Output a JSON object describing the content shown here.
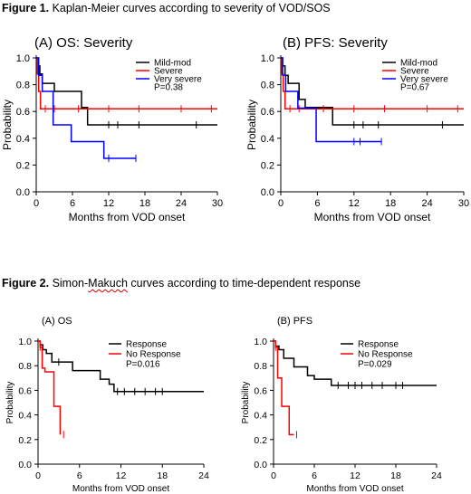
{
  "figures": [
    {
      "label": "Figure 1.",
      "pre": " Kaplan-Meier curves according to severity of VOD/SOS",
      "err": "",
      "post": ""
    },
    {
      "label": "Figure 2.",
      "pre": " Simon-",
      "err": "Makuch",
      "post": " curves according to time-dependent response"
    }
  ],
  "chart_data": [
    {
      "type": "line",
      "title": "(A) OS: Severity",
      "xlabel": "Months from VOD onset",
      "ylabel": "Probability",
      "xlim": [
        0,
        30
      ],
      "ylim": [
        0,
        1.0
      ],
      "xticks": [
        "0",
        "6",
        "12",
        "18",
        "24",
        "30"
      ],
      "yticks": [
        "0.0",
        "0.2",
        "0.4",
        "0.6",
        "0.8",
        "1.0"
      ],
      "legend": [
        "Mild-mod",
        "Severe",
        "Very severe",
        "P=0.38"
      ],
      "legend_position": "top-right",
      "grid": false,
      "series": [
        {
          "name": "Mild-mod",
          "color": "#000000",
          "x": [
            0,
            0.3,
            0.6,
            1,
            3,
            7.5,
            8.5,
            30
          ],
          "y": [
            1.0,
            0.94,
            0.88,
            0.81,
            0.75,
            0.63,
            0.5,
            0.5
          ],
          "censored_x": [
            12,
            13.5,
            17,
            26.5
          ]
        },
        {
          "name": "Severe",
          "color": "#ff0000",
          "x": [
            0,
            0.2,
            0.4,
            0.7,
            30
          ],
          "y": [
            1.0,
            0.88,
            0.75,
            0.62,
            0.62
          ],
          "censored_x": [
            1.5,
            3,
            7,
            12,
            17,
            24,
            29
          ]
        },
        {
          "name": "Very severe",
          "color": "#0000ff",
          "x": [
            0,
            0.4,
            1.0,
            2.8,
            5.8,
            11.2,
            16.5
          ],
          "y": [
            1.0,
            0.87,
            0.75,
            0.5,
            0.375,
            0.25,
            0.25
          ],
          "censored_x": [
            12,
            16.5
          ]
        }
      ]
    },
    {
      "type": "line",
      "title": "(B) PFS: Severity",
      "xlabel": "Months from VOD onset",
      "ylabel": "Probability",
      "xlim": [
        0,
        30
      ],
      "ylim": [
        0,
        1.0
      ],
      "xticks": [
        "0",
        "6",
        "12",
        "18",
        "24",
        "30"
      ],
      "yticks": [
        "0.0",
        "0.2",
        "0.4",
        "0.6",
        "0.8",
        "1.0"
      ],
      "legend": [
        "Mild-mod",
        "Severe",
        "Very severe",
        "P=0.67"
      ],
      "legend_position": "top-right",
      "grid": false,
      "series": [
        {
          "name": "Mild-mod",
          "color": "#000000",
          "x": [
            0,
            0.3,
            0.7,
            1.2,
            3,
            4,
            8.5,
            30
          ],
          "y": [
            1.0,
            0.94,
            0.87,
            0.81,
            0.69,
            0.63,
            0.5,
            0.5
          ],
          "censored_x": [
            12,
            13.5,
            16,
            26.5
          ]
        },
        {
          "name": "Severe",
          "color": "#ff0000",
          "x": [
            0,
            0.2,
            0.4,
            0.7,
            30
          ],
          "y": [
            1.0,
            0.88,
            0.75,
            0.62,
            0.62
          ],
          "censored_x": [
            1.5,
            3,
            7,
            12,
            17,
            24,
            29
          ]
        },
        {
          "name": "Very severe",
          "color": "#0000ff",
          "x": [
            0,
            0.3,
            0.8,
            2.8,
            5.8,
            16.5
          ],
          "y": [
            1.0,
            0.87,
            0.75,
            0.625,
            0.375,
            0.375
          ],
          "censored_x": [
            12,
            13,
            16.5
          ]
        }
      ]
    },
    {
      "type": "line",
      "title": "(A) OS",
      "xlabel": "Months from VOD onset",
      "ylabel": "Probability",
      "xlim": [
        0,
        24
      ],
      "ylim": [
        0,
        1.0
      ],
      "xticks": [
        "0",
        "6",
        "12",
        "18",
        "24"
      ],
      "yticks": [
        "0.0",
        "0.2",
        "0.4",
        "0.6",
        "0.8",
        "1.0"
      ],
      "legend": [
        "Response",
        "No Response",
        "P=0.016"
      ],
      "legend_position": "top-right",
      "grid": false,
      "series": [
        {
          "name": "Response",
          "color": "#000000",
          "x": [
            0,
            0.3,
            0.7,
            1.2,
            2,
            5,
            9,
            10.3,
            11,
            24
          ],
          "y": [
            1.0,
            0.97,
            0.93,
            0.9,
            0.83,
            0.76,
            0.69,
            0.65,
            0.59,
            0.59
          ],
          "censored_x": [
            3,
            11.5,
            12.5,
            14,
            15.5,
            17,
            18
          ]
        },
        {
          "name": "No Response",
          "color": "#ff0000",
          "x": [
            0,
            0.3,
            0.6,
            1,
            2.3,
            3.2
          ],
          "y": [
            1.0,
            0.95,
            0.78,
            0.75,
            0.47,
            0.24
          ],
          "censored_x": [
            0.3,
            3.7
          ]
        }
      ]
    },
    {
      "type": "line",
      "title": "(B) PFS",
      "xlabel": "Months from VOD onset",
      "ylabel": "Probability",
      "xlim": [
        0,
        24
      ],
      "ylim": [
        0,
        1.0
      ],
      "xticks": [
        "0",
        "6",
        "12",
        "18",
        "24"
      ],
      "yticks": [
        "0.0",
        "0.2",
        "0.4",
        "0.6",
        "0.8",
        "1.0"
      ],
      "legend": [
        "Response",
        "No Response",
        "P=0.029"
      ],
      "legend_position": "top-right",
      "grid": false,
      "series": [
        {
          "name": "Response",
          "color": "#000000",
          "x": [
            0,
            0.3,
            0.8,
            1.5,
            3,
            5,
            6,
            8.5,
            24
          ],
          "y": [
            1.0,
            0.96,
            0.93,
            0.86,
            0.79,
            0.72,
            0.69,
            0.64,
            0.64
          ],
          "censored_x": [
            9.5,
            11,
            12,
            13,
            14.5,
            16,
            18,
            19
          ]
        },
        {
          "name": "No Response",
          "color": "#ff0000",
          "x": [
            0,
            0.3,
            0.6,
            1.2,
            2.3,
            3
          ],
          "y": [
            1.0,
            0.95,
            0.7,
            0.47,
            0.24,
            0.24
          ],
          "censored_x": [
            0.3,
            3.4
          ]
        }
      ]
    }
  ]
}
